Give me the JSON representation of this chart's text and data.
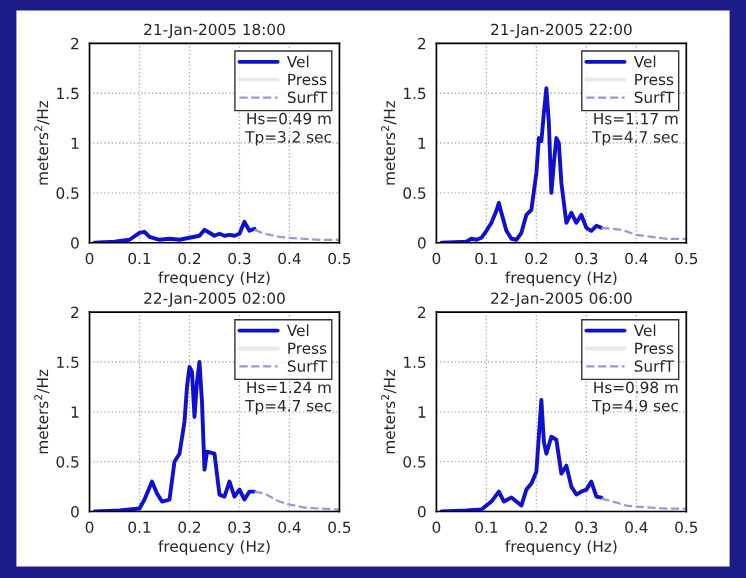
{
  "chart_data": [
    {
      "type": "line",
      "title": "21-Jan-2005 18:00",
      "xlabel": "frequency (Hz)",
      "ylabel": "meters$^{2}$/Hz",
      "xlim": [
        0,
        0.5
      ],
      "ylim": [
        0,
        2
      ],
      "xticks": [
        0,
        0.1,
        0.2,
        0.3,
        0.4,
        0.5
      ],
      "yticks": [
        0,
        0.5,
        1,
        1.5,
        2
      ],
      "grid": true,
      "legend": "top right",
      "annotations": [
        "Hs=0.49 m\nTp=3.2 sec"
      ],
      "series": [
        {
          "name": "Vel",
          "color": "#1010d0",
          "line_style": "solid",
          "x": [
            0.01,
            0.05,
            0.08,
            0.1,
            0.11,
            0.12,
            0.14,
            0.16,
            0.18,
            0.2,
            0.22,
            0.23,
            0.24,
            0.25,
            0.26,
            0.27,
            0.28,
            0.29,
            0.3,
            0.31,
            0.32,
            0.33
          ],
          "values": [
            0.0,
            0.01,
            0.03,
            0.1,
            0.11,
            0.06,
            0.03,
            0.04,
            0.03,
            0.05,
            0.07,
            0.13,
            0.1,
            0.07,
            0.09,
            0.07,
            0.08,
            0.07,
            0.09,
            0.21,
            0.12,
            0.14
          ]
        },
        {
          "name": "Press",
          "color": "#e8e8f0",
          "line_style": "solid"
        },
        {
          "name": "SurfT",
          "color": "#9898d8",
          "line_style": "dashed",
          "x": [
            0.33,
            0.35,
            0.38,
            0.4,
            0.43,
            0.46,
            0.5
          ],
          "values": [
            0.13,
            0.09,
            0.06,
            0.05,
            0.04,
            0.03,
            0.03
          ]
        }
      ]
    },
    {
      "type": "line",
      "title": "21-Jan-2005 22:00",
      "xlabel": "frequency (Hz)",
      "ylabel": "meters$^{2}$/Hz",
      "xlim": [
        0,
        0.5
      ],
      "ylim": [
        0,
        2
      ],
      "xticks": [
        0,
        0.1,
        0.2,
        0.3,
        0.4,
        0.5
      ],
      "yticks": [
        0,
        0.5,
        1,
        1.5,
        2
      ],
      "grid": true,
      "legend": "top right",
      "annotations": [
        "Hs=1.17 m\nTp=4.7 sec"
      ],
      "series": [
        {
          "name": "Vel",
          "color": "#1010d0",
          "line_style": "solid",
          "x": [
            0.01,
            0.06,
            0.07,
            0.08,
            0.09,
            0.1,
            0.11,
            0.12,
            0.125,
            0.13,
            0.14,
            0.15,
            0.16,
            0.17,
            0.18,
            0.19,
            0.2,
            0.205,
            0.21,
            0.215,
            0.22,
            0.225,
            0.23,
            0.235,
            0.24,
            0.245,
            0.25,
            0.26,
            0.27,
            0.28,
            0.29,
            0.3,
            0.31,
            0.32,
            0.33
          ],
          "values": [
            0,
            0.01,
            0.04,
            0.03,
            0.05,
            0.12,
            0.2,
            0.32,
            0.4,
            0.3,
            0.12,
            0.04,
            0.03,
            0.1,
            0.28,
            0.33,
            0.7,
            1.05,
            1.02,
            1.3,
            1.55,
            1.2,
            0.5,
            0.8,
            1.05,
            1.0,
            0.6,
            0.2,
            0.3,
            0.2,
            0.28,
            0.15,
            0.12,
            0.17,
            0.15
          ]
        },
        {
          "name": "Press",
          "color": "#e8e8f0",
          "line_style": "solid"
        },
        {
          "name": "SurfT",
          "color": "#9898d8",
          "line_style": "dashed",
          "x": [
            0.33,
            0.35,
            0.37,
            0.4,
            0.43,
            0.46,
            0.5
          ],
          "values": [
            0.15,
            0.14,
            0.13,
            0.08,
            0.06,
            0.04,
            0.04
          ]
        }
      ]
    },
    {
      "type": "line",
      "title": "22-Jan-2005 02:00",
      "xlabel": "frequency (Hz)",
      "ylabel": "meters$^{2}$/Hz",
      "xlim": [
        0,
        0.5
      ],
      "ylim": [
        0,
        2
      ],
      "xticks": [
        0,
        0.1,
        0.2,
        0.3,
        0.4,
        0.5
      ],
      "yticks": [
        0,
        0.5,
        1,
        1.5,
        2
      ],
      "grid": true,
      "legend": "top right",
      "annotations": [
        "Hs=1.24 m\nTp=4.7 sec"
      ],
      "series": [
        {
          "name": "Vel",
          "color": "#1010d0",
          "line_style": "solid",
          "x": [
            0.01,
            0.06,
            0.08,
            0.1,
            0.11,
            0.125,
            0.135,
            0.145,
            0.16,
            0.17,
            0.18,
            0.19,
            0.195,
            0.2,
            0.205,
            0.21,
            0.215,
            0.22,
            0.225,
            0.23,
            0.235,
            0.25,
            0.26,
            0.27,
            0.28,
            0.29,
            0.3,
            0.31,
            0.32,
            0.33
          ],
          "values": [
            0,
            0.01,
            0.02,
            0.03,
            0.12,
            0.3,
            0.18,
            0.1,
            0.12,
            0.5,
            0.58,
            0.9,
            1.25,
            1.45,
            1.4,
            0.95,
            1.3,
            1.5,
            1.1,
            0.42,
            0.6,
            0.58,
            0.17,
            0.15,
            0.3,
            0.15,
            0.22,
            0.12,
            0.2,
            0.2
          ]
        },
        {
          "name": "Press",
          "color": "#e8e8f0",
          "line_style": "solid"
        },
        {
          "name": "SurfT",
          "color": "#9898d8",
          "line_style": "dashed",
          "x": [
            0.33,
            0.35,
            0.38,
            0.4,
            0.43,
            0.46,
            0.5
          ],
          "values": [
            0.2,
            0.18,
            0.1,
            0.07,
            0.04,
            0.03,
            0.02
          ]
        }
      ]
    },
    {
      "type": "line",
      "title": "22-Jan-2005 06:00",
      "xlabel": "frequency (Hz)",
      "ylabel": "meters$^{2}$/Hz",
      "xlim": [
        0,
        0.5
      ],
      "ylim": [
        0,
        2
      ],
      "xticks": [
        0,
        0.1,
        0.2,
        0.3,
        0.4,
        0.5
      ],
      "yticks": [
        0,
        0.5,
        1,
        1.5,
        2
      ],
      "grid": true,
      "legend": "top right",
      "annotations": [
        "Hs=0.98 m\nTp=4.9 sec"
      ],
      "series": [
        {
          "name": "Vel",
          "color": "#1010d0",
          "line_style": "solid",
          "x": [
            0.01,
            0.06,
            0.09,
            0.11,
            0.125,
            0.135,
            0.15,
            0.16,
            0.17,
            0.18,
            0.19,
            0.2,
            0.21,
            0.215,
            0.22,
            0.23,
            0.24,
            0.25,
            0.26,
            0.27,
            0.28,
            0.29,
            0.3,
            0.31,
            0.32,
            0.33
          ],
          "values": [
            0,
            0.01,
            0.02,
            0.1,
            0.2,
            0.1,
            0.14,
            0.1,
            0.06,
            0.22,
            0.28,
            0.4,
            1.12,
            0.7,
            0.58,
            0.75,
            0.72,
            0.38,
            0.46,
            0.25,
            0.17,
            0.2,
            0.22,
            0.3,
            0.15,
            0.14
          ]
        },
        {
          "name": "Press",
          "color": "#e8e8f0",
          "line_style": "solid"
        },
        {
          "name": "SurfT",
          "color": "#9898d8",
          "line_style": "dashed",
          "x": [
            0.33,
            0.36,
            0.38,
            0.4,
            0.43,
            0.46,
            0.5
          ],
          "values": [
            0.13,
            0.09,
            0.06,
            0.05,
            0.04,
            0.03,
            0.03
          ]
        }
      ]
    }
  ]
}
